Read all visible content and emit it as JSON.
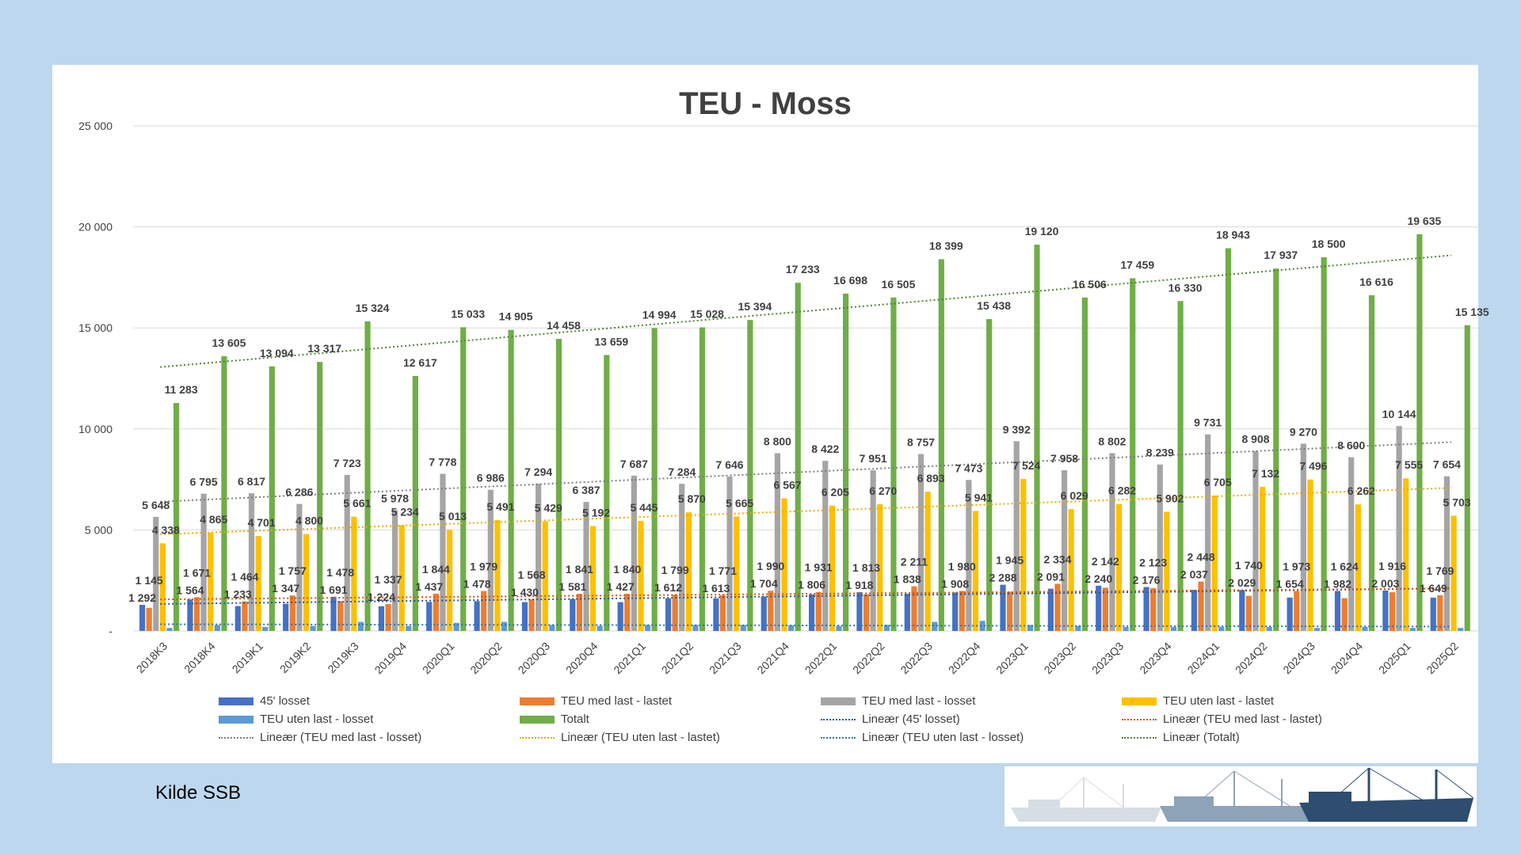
{
  "chart_data": {
    "type": "bar",
    "title": "TEU - Moss",
    "categories": [
      "2018K3",
      "2018K4",
      "2019K1",
      "2019K2",
      "2019K3",
      "2019Q4",
      "2020Q1",
      "2020Q2",
      "2020Q3",
      "2020Q4",
      "2021Q1",
      "2021Q2",
      "2021Q3",
      "2021Q4",
      "2022Q1",
      "2022Q2",
      "2022Q3",
      "2022Q4",
      "2023Q1",
      "2023Q2",
      "2023Q3",
      "2023Q4",
      "2024Q1",
      "2024Q2",
      "2024Q3",
      "2024Q4",
      "2025Q1",
      "2025Q2"
    ],
    "ylim": [
      0,
      25000
    ],
    "yticks": [
      0,
      5000,
      10000,
      15000,
      20000,
      25000
    ],
    "ytick_labels": [
      "-",
      "5 000",
      "10 000",
      "15 000",
      "20 000",
      "25 000"
    ],
    "grid": true,
    "legend_position": "bottom",
    "series": [
      {
        "name": "45' losset",
        "color": "#4472c4",
        "values": [
          1292,
          1564,
          1233,
          1347,
          1691,
          1224,
          1437,
          1478,
          1430,
          1581,
          1427,
          1612,
          1613,
          1704,
          1806,
          1918,
          1838,
          1908,
          2288,
          2091,
          2240,
          2176,
          2037,
          2029,
          1654,
          1982,
          2003,
          1649
        ],
        "labels": [
          "1 292",
          "1 564",
          "1 233",
          "1 347",
          "1 691",
          "1 224",
          "1 437",
          "1 478",
          "1 430",
          "1 581",
          "1 427",
          "1 612",
          "1 613",
          "1 704",
          "1 806",
          "1 918",
          "1 838",
          "1 908",
          "2 288",
          "2 091",
          "2 240",
          "2 176",
          "2 037",
          "2 029",
          "1 654",
          "1 982",
          "2 003",
          "1 649"
        ]
      },
      {
        "name": "TEU med last - lastet",
        "color": "#ed7d31",
        "values": [
          1145,
          1671,
          1464,
          1757,
          1478,
          1337,
          1844,
          1979,
          1568,
          1841,
          1840,
          1799,
          1771,
          1990,
          1931,
          1813,
          2211,
          1980,
          1945,
          2334,
          2142,
          2123,
          2448,
          1740,
          1973,
          1624,
          1916,
          1769
        ],
        "labels": [
          "1 145",
          "1 671",
          "1 464",
          "1 757",
          "1 478",
          "1 337",
          "1 844",
          "1 979",
          "1 568",
          "1 841",
          "1 840",
          "1 799",
          "1 771",
          "1 990",
          "1 931",
          "1 813",
          "2 211",
          "1 980",
          "1 945",
          "2 334",
          "2 142",
          "2 123",
          "2 448",
          "1 740",
          "1 973",
          "1 624",
          "1 916",
          "1 769"
        ]
      },
      {
        "name": "TEU med last - losset",
        "color": "#a5a5a5",
        "values": [
          5648,
          6795,
          6817,
          6286,
          7723,
          5978,
          7778,
          6986,
          7294,
          6387,
          7687,
          7284,
          7646,
          8800,
          8422,
          7951,
          8757,
          7473,
          9392,
          7958,
          8802,
          8239,
          9731,
          8908,
          9270,
          8600,
          10144,
          7654
        ],
        "labels": [
          "5 648",
          "6 795",
          "6 817",
          "6 286",
          "7 723",
          "5 978",
          "7 778",
          "6 986",
          "7 294",
          "6 387",
          "7 687",
          "7 284",
          "7 646",
          "8 800",
          "8 422",
          "7 951",
          "8 757",
          "7 473",
          "9 392",
          "7 958",
          "8 802",
          "8 239",
          "9 731",
          "8 908",
          "9 270",
          "8 600",
          "10 144",
          "7 654"
        ]
      },
      {
        "name": "TEU uten last - lastet",
        "color": "#ffc000",
        "values": [
          4338,
          4865,
          4701,
          4800,
          5661,
          5234,
          5013,
          5491,
          5429,
          5192,
          5445,
          5870,
          5665,
          6567,
          6205,
          6270,
          6893,
          5941,
          7524,
          6029,
          6282,
          5902,
          6705,
          7132,
          7496,
          6262,
          7555,
          5703
        ],
        "labels": [
          "4 338",
          "4 865",
          "4 701",
          "4 800",
          "5 661",
          "5 234",
          "5 013",
          "5 491",
          "5 429",
          "5 192",
          "5 445",
          "5 870",
          "5 665",
          "6 567",
          "6 205",
          "6 270",
          "6 893",
          "5 941",
          "7 524",
          "6 029",
          "6 282",
          "5 902",
          "6 705",
          "7 132",
          "7 496",
          "6 262",
          "7 555",
          "5 703"
        ]
      },
      {
        "name": "TEU uten last - losset",
        "color": "#5b9bd5",
        "values": [
          150,
          300,
          200,
          250,
          450,
          250,
          400,
          450,
          300,
          250,
          300,
          300,
          300,
          280,
          250,
          300,
          450,
          500,
          300,
          250,
          200,
          200,
          200,
          200,
          150,
          200,
          150,
          150
        ]
      },
      {
        "name": "Totalt",
        "color": "#70ad47",
        "values": [
          11283,
          13605,
          13094,
          13317,
          15324,
          12617,
          15033,
          14905,
          14458,
          13659,
          14994,
          15028,
          15394,
          17233,
          16698,
          16505,
          18399,
          15438,
          19120,
          16506,
          17459,
          16330,
          18943,
          17937,
          18500,
          16616,
          19635,
          15135
        ],
        "labels": [
          "11 283",
          "13 605",
          "13 094",
          "13 317",
          "15 324",
          "12 617",
          "15 033",
          "14 905",
          "14 458",
          "13 659",
          "14 994",
          "15 028",
          "15 394",
          "17 233",
          "16 698",
          "16 505",
          "18 399",
          "15 438",
          "19 120",
          "16 506",
          "17 459",
          "16 330",
          "18 943",
          "17 937",
          "18 500",
          "16 616",
          "19 635",
          "15 135"
        ]
      }
    ],
    "trendlines": [
      {
        "name": "Lineær (45' losset)",
        "color": "#2f5597"
      },
      {
        "name": "Lineær (TEU med last - lastet)",
        "color": "#c55a11"
      },
      {
        "name": "Lineær (TEU med last - losset)",
        "color": "#7f7f7f"
      },
      {
        "name": "Lineær (TEU uten last - lastet)",
        "color": "#e6ac00"
      },
      {
        "name": "Lineær (TEU uten last - losset)",
        "color": "#2e75b6"
      },
      {
        "name": "Lineær (Totalt)",
        "color": "#548235"
      }
    ]
  },
  "source_note": "Kilde SSB",
  "colors": {
    "background": "#bdd7ee",
    "panel": "#ffffff",
    "ship_dark": "#2f4d6e",
    "ship_mid": "#8ea3b8",
    "ship_light": "#d6dde4"
  }
}
